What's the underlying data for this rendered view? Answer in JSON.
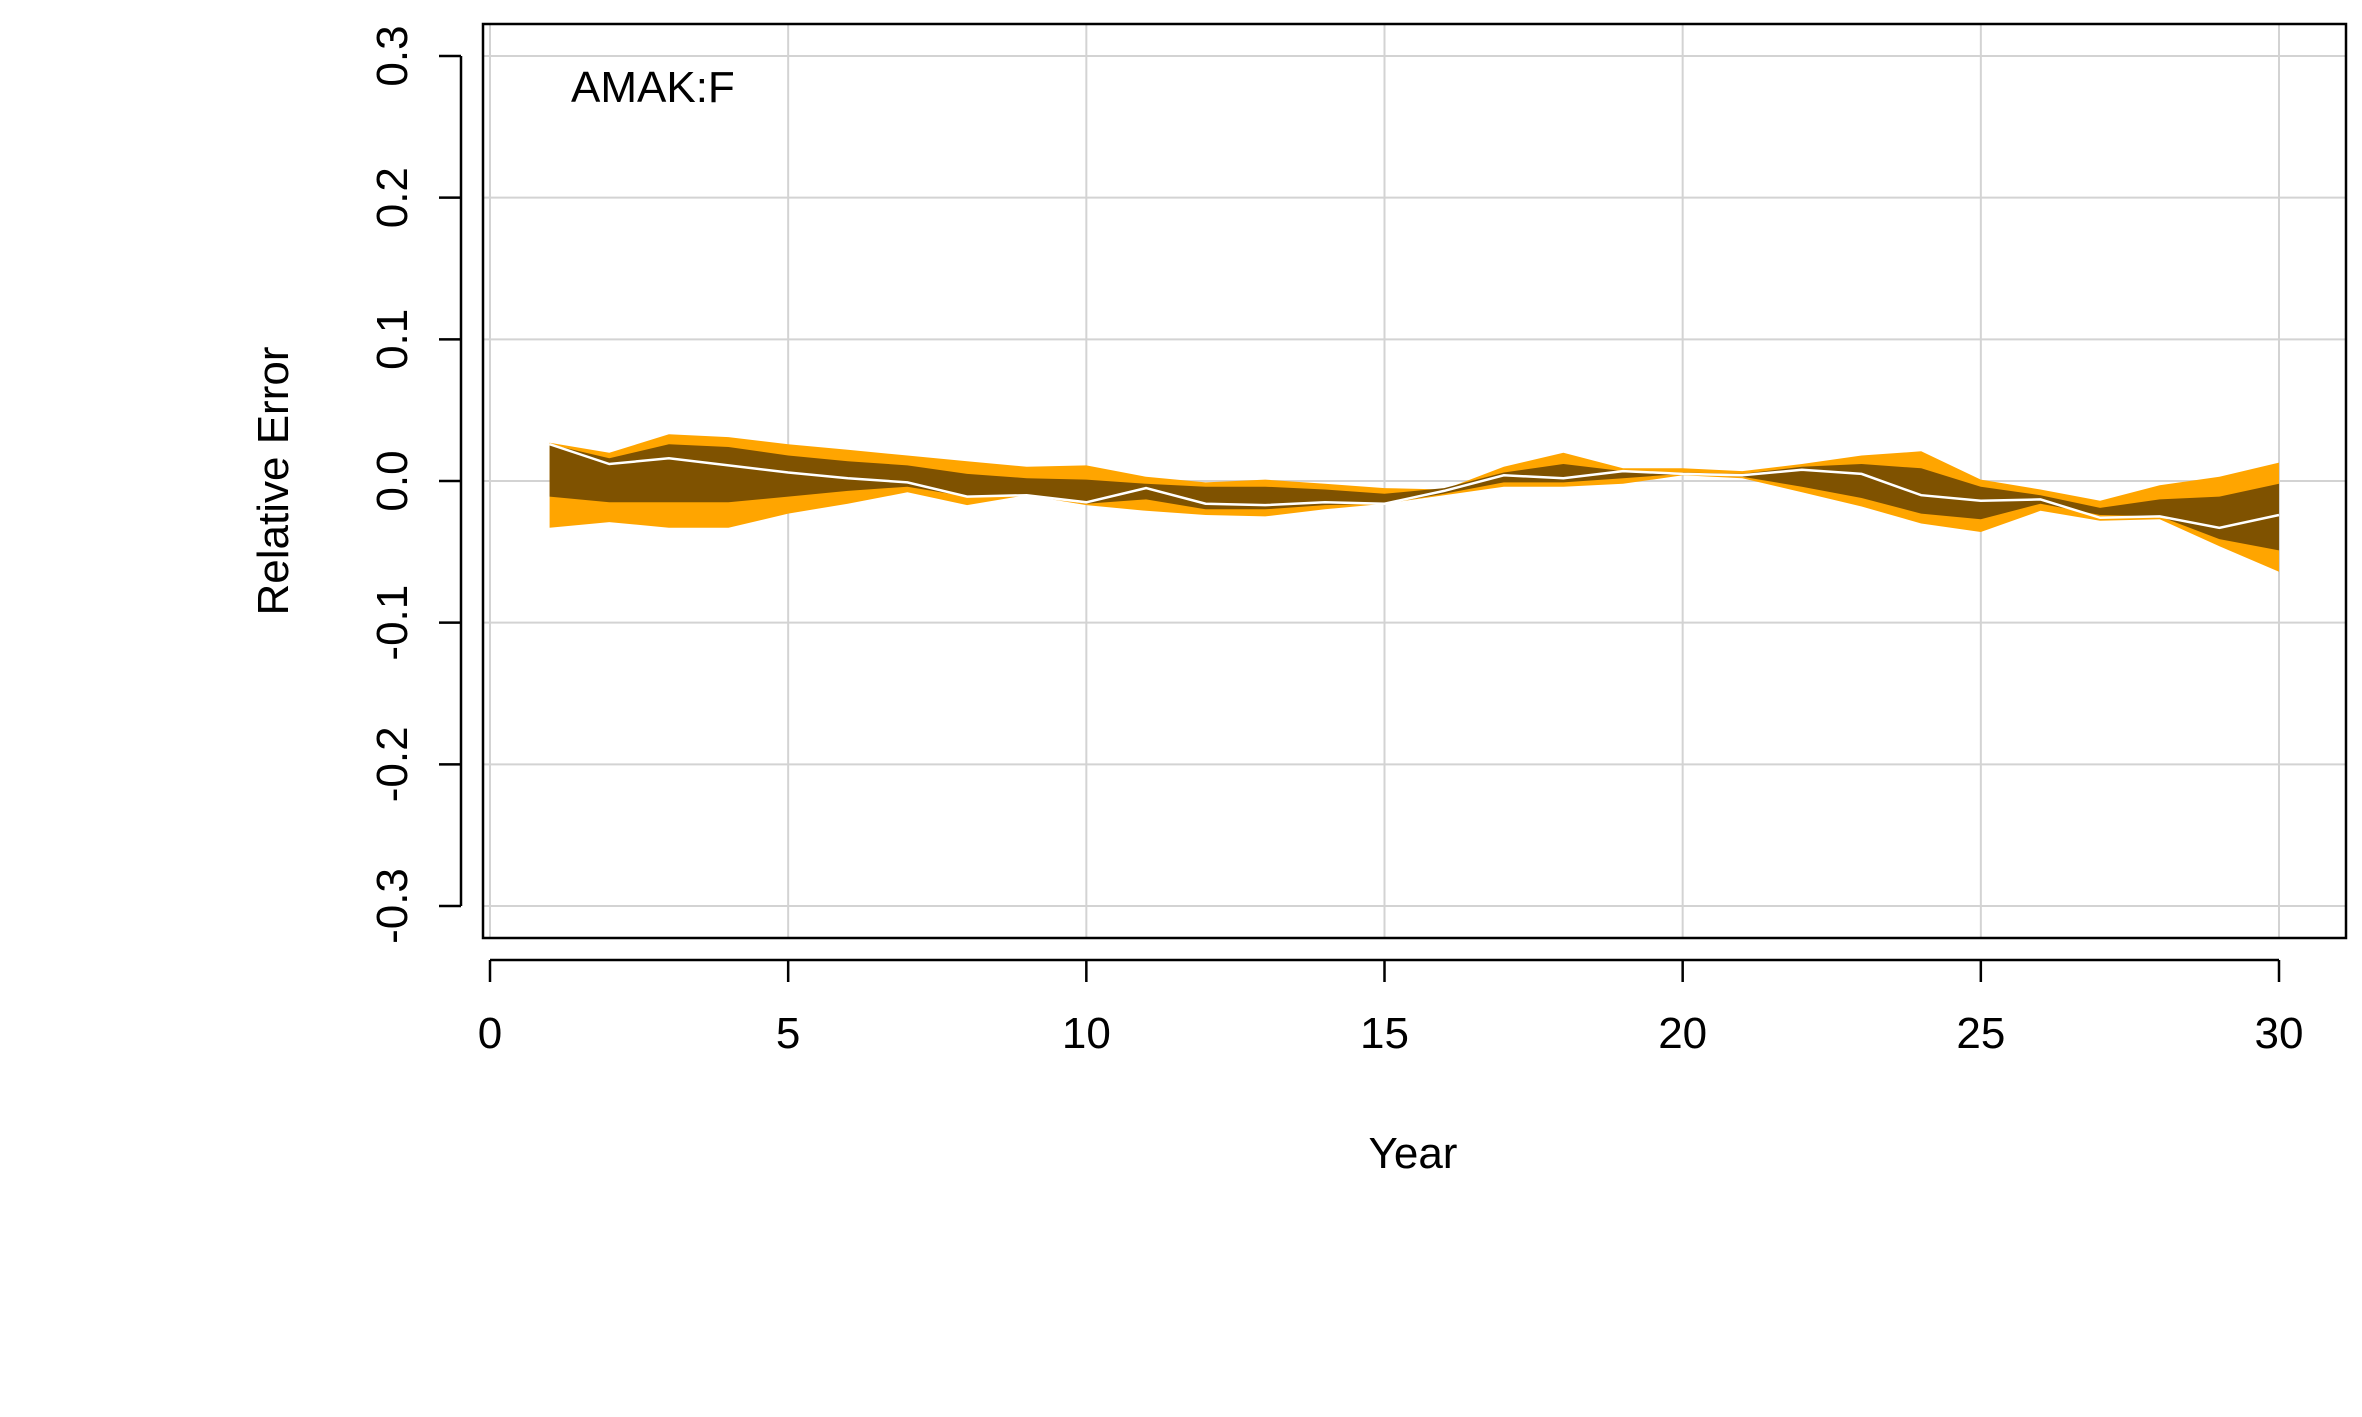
{
  "chart_data": {
    "type": "area",
    "title": "",
    "annotation": "AMAK:F",
    "xlabel": "Year",
    "ylabel": "Relative Error",
    "xlim": [
      0,
      30
    ],
    "ylim": [
      -0.3,
      0.3
    ],
    "x_ticks": [
      "0",
      "5",
      "10",
      "15",
      "20",
      "25",
      "30"
    ],
    "y_ticks": [
      "-0.3",
      "-0.2",
      "-0.1",
      "0.0",
      "0.1",
      "0.2",
      "0.3"
    ],
    "x_tick_values": [
      0,
      5,
      10,
      15,
      20,
      25,
      30
    ],
    "y_tick_values": [
      -0.3,
      -0.2,
      -0.1,
      0.0,
      0.1,
      0.2,
      0.3
    ],
    "grid": true,
    "colors": {
      "outer_band": "#FFA500",
      "inner_band": "#7F5200",
      "median": "#FFFFFF",
      "grid": "#D3D3D3",
      "axis": "#000000"
    },
    "x": [
      1,
      2,
      3,
      4,
      5,
      6,
      7,
      8,
      9,
      10,
      11,
      12,
      13,
      14,
      15,
      16,
      17,
      18,
      19,
      20,
      21,
      22,
      23,
      24,
      25,
      26,
      27,
      28,
      29,
      30
    ],
    "series": [
      {
        "role": "outer_band",
        "upper": [
          0.027,
          0.02,
          0.033,
          0.031,
          0.026,
          0.022,
          0.018,
          0.014,
          0.01,
          0.011,
          0.003,
          -0.001,
          0.001,
          -0.002,
          -0.005,
          -0.006,
          0.01,
          0.02,
          0.009,
          0.009,
          0.007,
          0.012,
          0.018,
          0.021,
          0.001,
          -0.006,
          -0.014,
          -0.003,
          0.003,
          0.013
        ],
        "lower": [
          -0.033,
          -0.029,
          -0.033,
          -0.033,
          -0.023,
          -0.016,
          -0.008,
          -0.017,
          -0.01,
          -0.017,
          -0.021,
          -0.024,
          -0.025,
          -0.02,
          -0.016,
          -0.01,
          -0.004,
          -0.004,
          -0.002,
          0.004,
          0.002,
          -0.008,
          -0.018,
          -0.03,
          -0.036,
          -0.021,
          -0.028,
          -0.027,
          -0.046,
          -0.064
        ]
      },
      {
        "role": "inner_band",
        "upper": [
          0.026,
          0.016,
          0.026,
          0.024,
          0.018,
          0.014,
          0.011,
          0.005,
          0.002,
          0.001,
          -0.002,
          -0.004,
          -0.004,
          -0.006,
          -0.009,
          -0.005,
          0.006,
          0.012,
          0.007,
          0.006,
          0.005,
          0.01,
          0.012,
          0.009,
          -0.004,
          -0.01,
          -0.019,
          -0.013,
          -0.011,
          -0.002
        ],
        "lower": [
          -0.011,
          -0.015,
          -0.015,
          -0.015,
          -0.011,
          -0.007,
          -0.004,
          -0.011,
          -0.01,
          -0.016,
          -0.013,
          -0.02,
          -0.02,
          -0.017,
          -0.016,
          -0.009,
          -0.001,
          -0.001,
          0.002,
          0.005,
          0.003,
          -0.004,
          -0.012,
          -0.023,
          -0.027,
          -0.016,
          -0.024,
          -0.025,
          -0.041,
          -0.049
        ]
      },
      {
        "role": "median",
        "values": [
          0.026,
          0.012,
          0.016,
          0.011,
          0.006,
          0.002,
          -0.001,
          -0.011,
          -0.01,
          -0.015,
          -0.005,
          -0.016,
          -0.017,
          -0.015,
          -0.016,
          -0.007,
          0.004,
          0.002,
          0.007,
          0.005,
          0.004,
          0.008,
          0.005,
          -0.01,
          -0.014,
          -0.013,
          -0.026,
          -0.025,
          -0.033,
          -0.024
        ]
      }
    ]
  }
}
